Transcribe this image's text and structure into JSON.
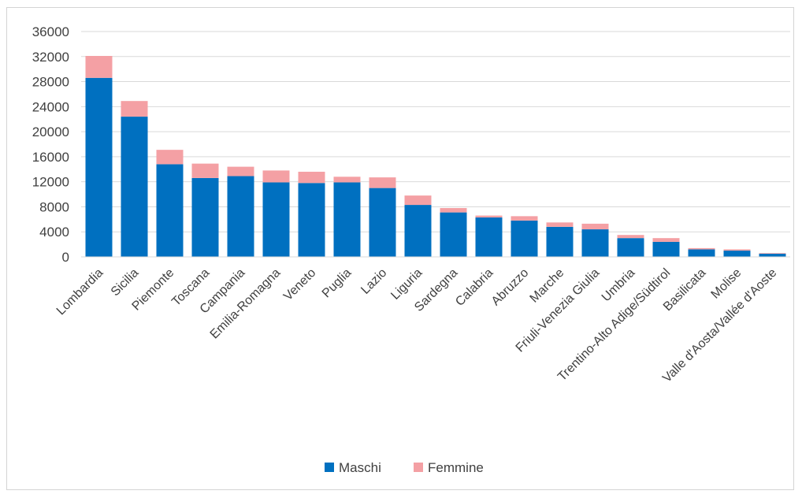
{
  "chart_data": {
    "type": "bar",
    "stacked": true,
    "title": "",
    "xlabel": "",
    "ylabel": "",
    "ylim": [
      0,
      36000
    ],
    "yticks": [
      0,
      4000,
      8000,
      12000,
      16000,
      20000,
      24000,
      28000,
      32000,
      36000
    ],
    "grid": true,
    "legend_position": "bottom",
    "categories": [
      "Lombardia",
      "Sicilia",
      "Piemonte",
      "Toscana",
      "Campania",
      "Emilia-Romagna",
      "Veneto",
      "Puglia",
      "Lazio",
      "Liguria",
      "Sardegna",
      "Calabria",
      "Abruzzo",
      "Marche",
      "Friuli-Venezia Giulia",
      "Umbria",
      "Trentino-Alto Adige/Südtirol",
      "Basilicata",
      "Molise",
      "Valle d'Aosta/Vallée d'Aoste"
    ],
    "series": [
      {
        "name": "Maschi",
        "color": "#0070c0",
        "values": [
          28600,
          22400,
          14800,
          12600,
          12900,
          11900,
          11800,
          11900,
          11000,
          8300,
          7100,
          6300,
          5800,
          4800,
          4400,
          3000,
          2400,
          1200,
          1000,
          500
        ]
      },
      {
        "name": "Femmine",
        "color": "#f4a0a4",
        "values": [
          3500,
          2500,
          2300,
          2300,
          1500,
          1900,
          1800,
          900,
          1700,
          1500,
          700,
          300,
          700,
          700,
          900,
          500,
          600,
          200,
          200,
          100
        ]
      }
    ]
  }
}
